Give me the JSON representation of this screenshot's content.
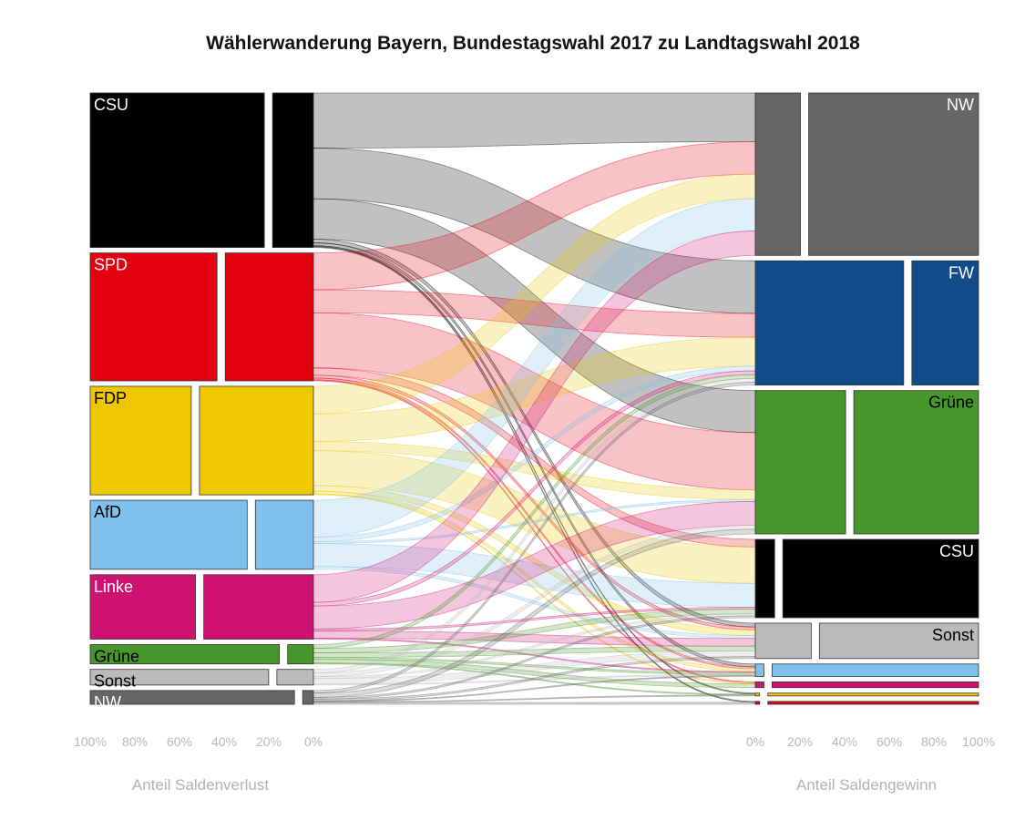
{
  "chart_data": {
    "type": "alluvial",
    "title": "Wählerwanderung Bayern, Bundestagswahl 2017 zu Landtagswahl 2018",
    "left_axis": {
      "label": "Anteil Saldenverlust",
      "ticks": [
        "100%",
        "80%",
        "60%",
        "40%",
        "20%",
        "0%"
      ]
    },
    "right_axis": {
      "label": "Anteil Saldengewinn",
      "ticks": [
        "0%",
        "20%",
        "40%",
        "60%",
        "80%",
        "100%"
      ]
    },
    "sources": [
      {
        "name": "CSU",
        "label": "CSU",
        "color": "#000000",
        "label_color": "#ffffff",
        "weight": 168,
        "share_to_nw": 0.19
      },
      {
        "name": "SPD",
        "label": "SPD",
        "color": "#e3000f",
        "label_color": "#ffffff",
        "weight": 139,
        "share_to_nw": 0.41
      },
      {
        "name": "FDP",
        "label": "FDP",
        "color": "#f0c800",
        "label_color": "#000000",
        "weight": 118,
        "share_to_nw": 0.53
      },
      {
        "name": "AfD",
        "label": "AfD",
        "color": "#7fc1ec",
        "label_color": "#000000",
        "weight": 75,
        "share_to_nw": 0.27
      },
      {
        "name": "Linke",
        "label": "Linke",
        "color": "#cf1170",
        "label_color": "#ffffff",
        "weight": 70,
        "share_to_nw": 0.51
      },
      {
        "name": "Grüne",
        "label": "Grüne",
        "color": "#46962b",
        "label_color": "#000000",
        "weight": 21,
        "share_to_nw": 0.12
      },
      {
        "name": "Sonst",
        "label": "Sonst",
        "color": "#bbbbbb",
        "label_color": "#000000",
        "weight": 17,
        "share_to_nw": 0.17
      },
      {
        "name": "NW",
        "label": "NW",
        "color": "#666666",
        "label_color": "#ffffff",
        "weight": 15,
        "share_to_nw": 0.05
      }
    ],
    "targets": [
      {
        "name": "NW",
        "label": "NW",
        "color": "#666666",
        "label_color": "#ffffff",
        "weight": 170,
        "share_from_nw": 0.21
      },
      {
        "name": "FW",
        "label": "FW",
        "color": "#124b89",
        "label_color": "#ffffff",
        "weight": 130,
        "share_from_nw": 0.69
      },
      {
        "name": "Grüne",
        "label": "Grüne",
        "color": "#46962b",
        "label_color": "#000000",
        "weight": 150,
        "share_from_nw": 0.42
      },
      {
        "name": "CSU",
        "label": "CSU",
        "color": "#000000",
        "label_color": "#ffffff",
        "weight": 82,
        "share_from_nw": 0.09
      },
      {
        "name": "Sonst",
        "label": "Sonst",
        "color": "#bbbbbb",
        "label_color": "#000000",
        "weight": 37,
        "share_from_nw": 0.26
      },
      {
        "name": "AfD",
        "label": "",
        "color": "#7fc1ec",
        "label_color": "#000000",
        "weight": 13,
        "share_from_nw": 0.04
      },
      {
        "name": "Linke",
        "label": "",
        "color": "#cf1170",
        "label_color": "#000000",
        "weight": 6,
        "share_from_nw": 0.04
      },
      {
        "name": "FDP",
        "label": "",
        "color": "#f0c800",
        "label_color": "#000000",
        "weight": 3,
        "share_from_nw": 0.02
      },
      {
        "name": "SPD",
        "label": "",
        "color": "#e3000f",
        "label_color": "#000000",
        "weight": 3,
        "share_from_nw": 0.02
      }
    ],
    "flows": [
      {
        "from": "CSU",
        "to": "NW",
        "value": 60
      },
      {
        "from": "CSU",
        "to": "FW",
        "value": 55
      },
      {
        "from": "CSU",
        "to": "Grüne",
        "value": 44
      },
      {
        "from": "CSU",
        "to": "Sonst",
        "value": 4
      },
      {
        "from": "CSU",
        "to": "AfD",
        "value": 3
      },
      {
        "from": "CSU",
        "to": "FDP",
        "value": 1
      },
      {
        "from": "CSU",
        "to": "SPD",
        "value": 1
      },
      {
        "from": "SPD",
        "to": "NW",
        "value": 40
      },
      {
        "from": "SPD",
        "to": "FW",
        "value": 25
      },
      {
        "from": "SPD",
        "to": "Grüne",
        "value": 60
      },
      {
        "from": "SPD",
        "to": "CSU",
        "value": 8
      },
      {
        "from": "SPD",
        "to": "Sonst",
        "value": 3
      },
      {
        "from": "SPD",
        "to": "AfD",
        "value": 2
      },
      {
        "from": "SPD",
        "to": "Linke",
        "value": 1
      },
      {
        "from": "FDP",
        "to": "NW",
        "value": 30
      },
      {
        "from": "FDP",
        "to": "FW",
        "value": 30
      },
      {
        "from": "FDP",
        "to": "CSU",
        "value": 38
      },
      {
        "from": "FDP",
        "to": "Grüne",
        "value": 10
      },
      {
        "from": "FDP",
        "to": "Sonst",
        "value": 6
      },
      {
        "from": "FDP",
        "to": "AfD",
        "value": 3
      },
      {
        "from": "FDP",
        "to": "Linke",
        "value": 1
      },
      {
        "from": "AfD",
        "to": "NW",
        "value": 40
      },
      {
        "from": "AfD",
        "to": "CSU",
        "value": 25
      },
      {
        "from": "AfD",
        "to": "FW",
        "value": 5
      },
      {
        "from": "AfD",
        "to": "Sonst",
        "value": 3
      },
      {
        "from": "AfD",
        "to": "Grüne",
        "value": 2
      },
      {
        "from": "Linke",
        "to": "NW",
        "value": 30
      },
      {
        "from": "Linke",
        "to": "Grüne",
        "value": 25
      },
      {
        "from": "Linke",
        "to": "Sonst",
        "value": 8
      },
      {
        "from": "Linke",
        "to": "FW",
        "value": 4
      },
      {
        "from": "Linke",
        "to": "CSU",
        "value": 2
      },
      {
        "from": "Linke",
        "to": "AfD",
        "value": 1
      },
      {
        "from": "Grüne",
        "to": "CSU",
        "value": 5
      },
      {
        "from": "Grüne",
        "to": "FW",
        "value": 4
      },
      {
        "from": "Grüne",
        "to": "Sonst",
        "value": 5
      },
      {
        "from": "Grüne",
        "to": "Linke",
        "value": 4
      },
      {
        "from": "Grüne",
        "to": "AfD",
        "value": 2
      },
      {
        "from": "Grüne",
        "to": "FDP",
        "value": 1
      },
      {
        "from": "Sonst",
        "to": "Sonst",
        "value": 6
      },
      {
        "from": "Sonst",
        "to": "FW",
        "value": 4
      },
      {
        "from": "Sonst",
        "to": "Grüne",
        "value": 4
      },
      {
        "from": "Sonst",
        "to": "CSU",
        "value": 2
      },
      {
        "from": "Sonst",
        "to": "AfD",
        "value": 1
      },
      {
        "from": "NW",
        "to": "FW",
        "value": 3
      },
      {
        "from": "NW",
        "to": "Grüne",
        "value": 5
      },
      {
        "from": "NW",
        "to": "CSU",
        "value": 2
      },
      {
        "from": "NW",
        "to": "Sonst",
        "value": 2
      },
      {
        "from": "NW",
        "to": "AfD",
        "value": 1
      },
      {
        "from": "NW",
        "to": "FDP",
        "value": 1
      },
      {
        "from": "NW",
        "to": "SPD",
        "value": 2
      }
    ]
  }
}
